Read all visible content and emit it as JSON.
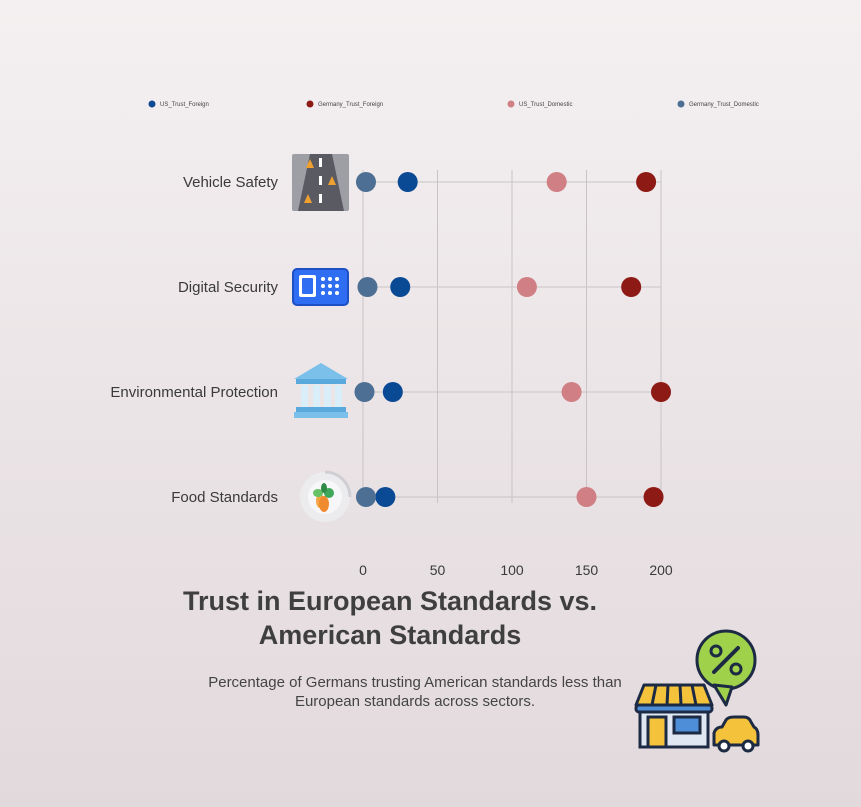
{
  "chart_data": {
    "type": "dot",
    "title": "Trust in European Standards vs. American Standards",
    "subtitle": "Percentage of Germans trusting American standards less than European standards across sectors.",
    "categories": [
      "Vehicle Safety",
      "Digital Security",
      "Environmental Protection",
      "Food Standards"
    ],
    "category_icons": [
      "road-icon",
      "safe-keypad-icon",
      "government-building-icon",
      "vegetable-bowl-icon"
    ],
    "series": [
      {
        "name": "US_Trust_Foreign",
        "color": "#0a4a94",
        "values": [
          30,
          25,
          20,
          15
        ]
      },
      {
        "name": "Germany_Trust_Foreign",
        "color": "#8e1a16",
        "values": [
          190,
          180,
          200,
          195
        ]
      },
      {
        "name": "US_Trust_Domestic",
        "color": "#d07f84",
        "values": [
          130,
          110,
          140,
          150
        ]
      },
      {
        "name": "Germany_Trust_Domestic",
        "color": "#4d6f93",
        "values": [
          2,
          3,
          1,
          2
        ]
      }
    ],
    "xlim": [
      0,
      200
    ],
    "xticks": [
      0,
      50,
      100,
      150,
      200
    ],
    "grid": true,
    "legend_position": "top"
  }
}
